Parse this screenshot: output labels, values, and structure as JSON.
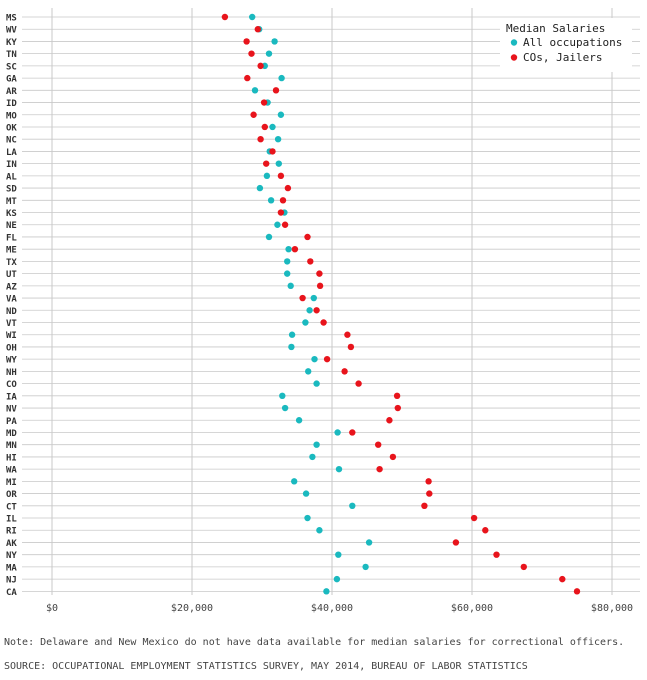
{
  "colors": {
    "all_occupations": "#1ab9bf",
    "cos_jailers": "#e8141c",
    "gridline": "#c9c9c9",
    "background": "#ffffff"
  },
  "footer": {
    "note": "Note: Delaware and New Mexico do not have data available for median salaries for correctional officers.",
    "source": "SOURCE: OCCUPATIONAL EMPLOYMENT STATISTICS SURVEY, MAY 2014, BUREAU OF LABOR STATISTICS"
  },
  "chart_data": {
    "type": "scatter",
    "orientation": "dot-plot, states on y axis",
    "legend": {
      "title": "Median Salaries",
      "placement": "top-right"
    },
    "x_ticks": [
      0,
      20000,
      40000,
      60000,
      80000
    ],
    "x_tick_labels": [
      "$0",
      "$20,000",
      "$40,000",
      "$60,000",
      "$80,000"
    ],
    "xlim": [
      0,
      80000
    ],
    "grid": true,
    "categories": [
      "MS",
      "WV",
      "KY",
      "TN",
      "SC",
      "GA",
      "AR",
      "ID",
      "MO",
      "OK",
      "NC",
      "LA",
      "IN",
      "AL",
      "SD",
      "MT",
      "KS",
      "NE",
      "FL",
      "ME",
      "TX",
      "UT",
      "AZ",
      "VA",
      "ND",
      "VT",
      "WI",
      "OH",
      "WY",
      "NH",
      "CO",
      "IA",
      "NV",
      "PA",
      "MD",
      "MN",
      "HI",
      "WA",
      "MI",
      "OR",
      "CT",
      "IL",
      "RI",
      "AK",
      "NY",
      "MA",
      "NJ",
      "CA"
    ],
    "series": [
      {
        "name": "All occupations",
        "color": "#1ab9bf",
        "values": [
          28600,
          29600,
          31800,
          31000,
          30400,
          32800,
          29000,
          30800,
          32700,
          31500,
          32300,
          31100,
          32400,
          30700,
          29700,
          31300,
          33200,
          32200,
          31000,
          33800,
          33600,
          33600,
          34100,
          37400,
          36800,
          36200,
          34300,
          34200,
          37500,
          36600,
          37800,
          32900,
          33300,
          35300,
          40800,
          37800,
          37200,
          41000,
          34600,
          36300,
          42900,
          36500,
          38200,
          45300,
          40900,
          44800,
          40700,
          39200
        ]
      },
      {
        "name": "COs, Jailers",
        "color": "#e8141c",
        "values": [
          24700,
          29400,
          27800,
          28500,
          29800,
          27900,
          32000,
          30300,
          28800,
          30400,
          29800,
          31500,
          30600,
          32700,
          33700,
          33000,
          32700,
          33300,
          36500,
          34700,
          36900,
          38200,
          38300,
          35800,
          37800,
          38800,
          42200,
          42700,
          39300,
          41800,
          43800,
          49300,
          49400,
          48200,
          42900,
          46600,
          48700,
          46800,
          53800,
          53900,
          53200,
          60300,
          61900,
          57700,
          63500,
          67400,
          72900,
          75000
        ]
      }
    ]
  }
}
